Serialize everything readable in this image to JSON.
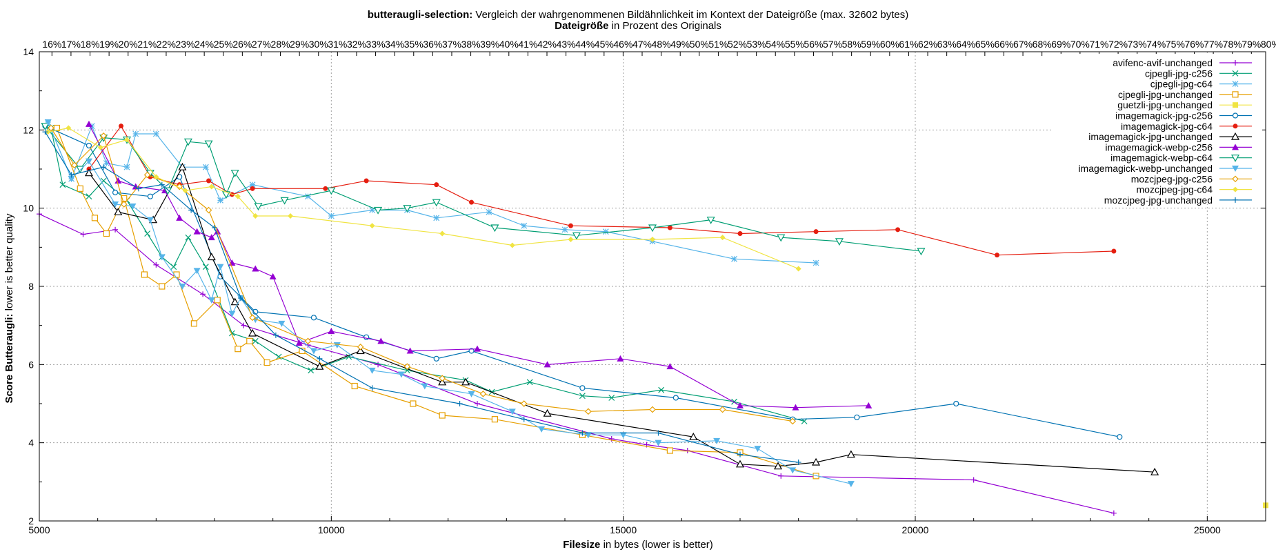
{
  "chart_data": {
    "type": "line",
    "title": {
      "bold": "butteraugli-selection:",
      "rest": " Vergleich der wahrgenommenen Bildähnlichkeit im Kontext der Dateigröße (max. 32602 bytes)"
    },
    "subtitle": {
      "bold": "Dateigröße",
      "rest": " in Prozent des Originals"
    },
    "xlabel": {
      "bold": "Filesize",
      "rest": " in bytes (lower is better)"
    },
    "ylabel": {
      "bold": "Score Butteraugli:",
      "rest": " lower is better quality"
    },
    "xlim": [
      5000,
      26000
    ],
    "ylim": [
      2,
      14
    ],
    "xticks": [
      5000,
      10000,
      15000,
      20000,
      25000
    ],
    "yticks": [
      2,
      4,
      6,
      8,
      10,
      12,
      14
    ],
    "top_axis": {
      "from": 15,
      "to": 80,
      "step": 1,
      "unit": "%",
      "reference_bytes": 32602
    },
    "grid": true,
    "legend_position": "top-right",
    "series": [
      {
        "name": "avifenc-avif-unchanged",
        "color": "#9400d3",
        "marker": "plus",
        "x": [
          5000,
          5750,
          6300,
          7000,
          7800,
          8500,
          9600,
          10800,
          12500,
          14800,
          15400,
          16100,
          17700,
          21000,
          23400
        ],
        "y": [
          9.85,
          9.33,
          9.45,
          8.55,
          7.8,
          7.0,
          6.5,
          6.0,
          5.0,
          4.1,
          3.95,
          3.8,
          3.15,
          3.05,
          2.2
        ]
      },
      {
        "name": "cjpegli-jpg-c256",
        "color": "#009e73",
        "marker": "x",
        "x": [
          5200,
          5400,
          5850,
          6100,
          6500,
          6850,
          7100,
          7300,
          7550,
          7850,
          8300,
          8700,
          9100,
          9650,
          10300,
          11300,
          12300,
          12750,
          13400,
          14300,
          14800,
          15650,
          16900,
          18100
        ],
        "y": [
          12.05,
          10.6,
          10.3,
          10.7,
          10.2,
          9.35,
          8.75,
          8.5,
          9.25,
          8.5,
          6.8,
          6.6,
          6.2,
          5.85,
          6.2,
          5.85,
          5.6,
          5.3,
          5.55,
          5.2,
          5.15,
          5.35,
          5.05,
          4.55
        ]
      },
      {
        "name": "cjpegli-jpg-c64",
        "color": "#56b4e9",
        "marker": "star",
        "x": [
          5150,
          5550,
          5900,
          6150,
          6500,
          6650,
          7000,
          7450,
          7850,
          8100,
          8650,
          9600,
          10000,
          10700,
          11300,
          11800,
          12700,
          13300,
          14000,
          14700,
          15500,
          16900,
          18300
        ],
        "y": [
          12.2,
          10.75,
          12.1,
          11.15,
          11.05,
          11.9,
          11.9,
          11.05,
          11.05,
          10.2,
          10.6,
          10.3,
          9.8,
          9.95,
          9.95,
          9.75,
          9.9,
          9.55,
          9.45,
          9.4,
          9.15,
          8.7,
          8.6
        ]
      },
      {
        "name": "cjpegli-jpg-unchanged",
        "color": "#e69f00",
        "marker": "square",
        "x": [
          5300,
          5700,
          5950,
          6150,
          6450,
          6800,
          7100,
          7350,
          7650,
          8050,
          8400,
          8600,
          8900,
          9500,
          10400,
          11400,
          11900,
          12800,
          14300,
          15800,
          17000,
          18300
        ],
        "y": [
          12.05,
          10.5,
          9.75,
          9.35,
          10.25,
          8.3,
          8.0,
          8.3,
          7.05,
          7.65,
          6.4,
          6.6,
          6.05,
          6.35,
          5.45,
          5.0,
          4.7,
          4.6,
          4.2,
          3.8,
          3.75,
          3.15
        ]
      },
      {
        "name": "guetzli-jpg-unchanged",
        "color": "#f0e442",
        "marker": "filled-square",
        "x": [
          26000
        ],
        "y": [
          2.4
        ]
      },
      {
        "name": "imagemagick-jpg-c256",
        "color": "#0072b2",
        "marker": "circle",
        "x": [
          5100,
          5850,
          6300,
          6900,
          7400,
          8100,
          8700,
          9700,
          10600,
          11800,
          12400,
          14300,
          15900,
          17900,
          19000,
          20700,
          23500
        ],
        "y": [
          12.1,
          11.6,
          10.4,
          10.3,
          10.8,
          8.25,
          7.35,
          7.2,
          6.7,
          6.15,
          6.35,
          5.4,
          5.15,
          4.6,
          4.65,
          5.0,
          4.15
        ]
      },
      {
        "name": "imagemagick-jpg-c64",
        "color": "#e51e10",
        "marker": "filled-circle",
        "x": [
          5850,
          6400,
          6900,
          7400,
          7900,
          8300,
          8650,
          9900,
          10600,
          11800,
          12400,
          14100,
          15800,
          17000,
          18300,
          19700,
          21400,
          23400
        ],
        "y": [
          11.0,
          12.1,
          10.8,
          10.6,
          10.7,
          10.35,
          10.5,
          10.5,
          10.7,
          10.6,
          10.15,
          9.55,
          9.5,
          9.35,
          9.4,
          9.45,
          8.8,
          8.9
        ]
      },
      {
        "name": "imagemagick-jpg-unchanged",
        "color": "#000000",
        "marker": "triangle",
        "x": [
          5850,
          6350,
          6950,
          7450,
          7950,
          8350,
          8650,
          9800,
          10500,
          11900,
          12300,
          13700,
          16200,
          17000,
          17650,
          18300,
          18900,
          24100
        ],
        "y": [
          10.9,
          9.9,
          9.7,
          11.05,
          8.75,
          7.6,
          6.8,
          5.95,
          6.35,
          5.55,
          5.55,
          4.75,
          4.15,
          3.45,
          3.4,
          3.5,
          3.7,
          3.25
        ]
      },
      {
        "name": "imagemagick-webp-c256",
        "color": "#9400d3",
        "marker": "filled-triangle",
        "x": [
          5850,
          6350,
          6650,
          7150,
          7400,
          7700,
          7950,
          8050,
          8300,
          8700,
          9000,
          9450,
          10000,
          10850,
          11350,
          12500,
          13700,
          14950,
          15800,
          17000,
          17950,
          19200
        ],
        "y": [
          12.15,
          10.7,
          10.55,
          10.45,
          9.75,
          9.4,
          9.25,
          9.4,
          8.6,
          8.45,
          8.25,
          6.55,
          6.85,
          6.6,
          6.35,
          6.4,
          6.0,
          6.15,
          5.95,
          4.95,
          4.9,
          4.95
        ]
      },
      {
        "name": "imagemagick-webp-c64",
        "color": "#009e73",
        "marker": "inverted-triangle",
        "x": [
          5100,
          5700,
          6100,
          6500,
          6900,
          7200,
          7550,
          7900,
          8200,
          8350,
          8750,
          9200,
          10000,
          10800,
          11300,
          11800,
          12800,
          14200,
          15500,
          16500,
          17700,
          18700,
          20100
        ],
        "y": [
          12.1,
          11.0,
          11.8,
          11.75,
          10.9,
          10.45,
          11.7,
          11.65,
          10.35,
          10.9,
          10.05,
          10.2,
          10.45,
          9.95,
          10.0,
          10.15,
          9.5,
          9.3,
          9.5,
          9.7,
          9.25,
          9.15,
          8.9
        ]
      },
      {
        "name": "imagemagick-webp-unchanged",
        "color": "#56b4e9",
        "marker": "filled-inverted-triangle",
        "x": [
          5150,
          5550,
          5850,
          6300,
          6600,
          6900,
          7100,
          7450,
          7700,
          7950,
          8100,
          8300,
          8450,
          8700,
          9150,
          9700,
          10100,
          10700,
          11200,
          11600,
          12400,
          13100,
          13600,
          14400,
          15000,
          15600,
          16600,
          17300,
          17900,
          18900
        ],
        "y": [
          12.2,
          10.75,
          11.2,
          10.1,
          10.05,
          9.7,
          8.75,
          8.0,
          8.4,
          7.65,
          8.5,
          7.3,
          7.7,
          7.15,
          7.05,
          6.35,
          6.5,
          5.85,
          5.75,
          5.45,
          5.25,
          4.8,
          4.35,
          4.2,
          4.2,
          4.0,
          4.05,
          3.85,
          3.3,
          2.95
        ]
      },
      {
        "name": "mozcjpeg-jpg-c256",
        "color": "#e69f00",
        "marker": "diamond",
        "x": [
          5200,
          5600,
          6100,
          6450,
          6850,
          7400,
          7900,
          8650,
          9600,
          10500,
          11300,
          11900,
          12600,
          13300,
          14400,
          15500,
          16700,
          17900
        ],
        "y": [
          12.05,
          11.1,
          11.85,
          10.1,
          10.85,
          10.55,
          9.95,
          7.2,
          6.6,
          6.45,
          5.95,
          5.65,
          5.25,
          5.0,
          4.8,
          4.85,
          4.85,
          4.55
        ]
      },
      {
        "name": "mozcjpeg-jpg-c64",
        "color": "#f0e442",
        "marker": "filled-diamond",
        "x": [
          5150,
          5500,
          6050,
          6500,
          7000,
          7500,
          7950,
          8400,
          8700,
          9300,
          10700,
          11900,
          13100,
          14100,
          15500,
          16700,
          18000
        ],
        "y": [
          11.95,
          12.05,
          11.55,
          11.75,
          10.8,
          10.45,
          10.55,
          10.3,
          9.8,
          9.8,
          9.55,
          9.35,
          9.05,
          9.2,
          9.2,
          9.25,
          8.45
        ]
      },
      {
        "name": "mozcjpeg-jpg-unchanged",
        "color": "#0072b2",
        "marker": "plus",
        "x": [
          5100,
          5550,
          6100,
          6700,
          7100,
          7600,
          8000,
          8450,
          9050,
          9800,
          10700,
          12200,
          13300,
          14300,
          15600,
          17000,
          18000
        ],
        "y": [
          11.95,
          10.85,
          11.05,
          10.5,
          10.6,
          9.95,
          9.5,
          7.7,
          6.75,
          6.15,
          5.4,
          5.0,
          4.6,
          4.25,
          4.25,
          3.7,
          3.5
        ]
      }
    ]
  }
}
